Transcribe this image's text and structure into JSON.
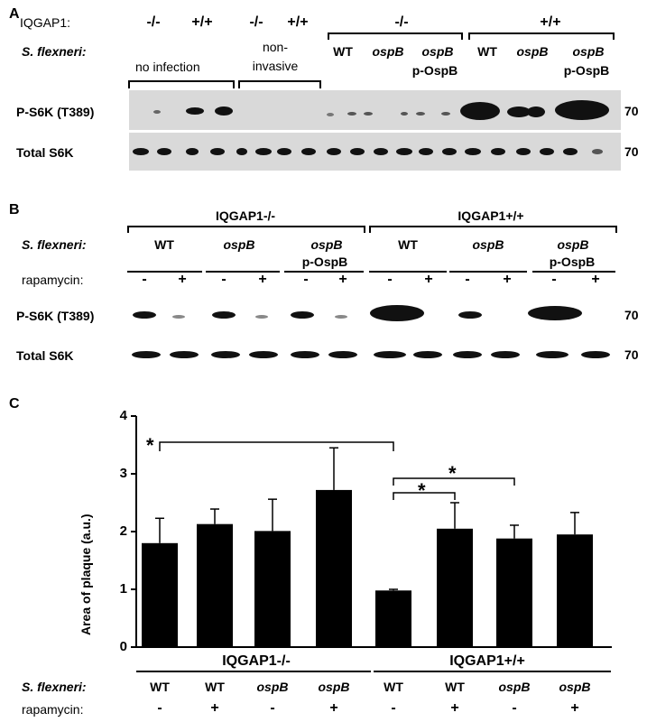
{
  "panel_a": {
    "label": "A",
    "iqgap_label": "IQGAP1:",
    "genotypes": [
      "-/-",
      "+/+",
      "-/-",
      "+/+",
      "-/-",
      "+/+"
    ],
    "strain_label": "S. flexneri:",
    "strain_colon_note": "",
    "groups": [
      "no infection",
      "non-",
      "invasive"
    ],
    "strains": [
      "WT",
      "ospB",
      "ospB",
      "p-OspB",
      "WT",
      "ospB",
      "ospB",
      "p-OspB"
    ],
    "rows": [
      "P-S6K (T389)",
      "Total S6K"
    ],
    "mw": [
      "70",
      "70"
    ]
  },
  "panel_b": {
    "label": "B",
    "genotype_groups": [
      "IQGAP1-/-",
      "IQGAP1+/+"
    ],
    "strain_label": "S. flexneri:",
    "strains": [
      "WT",
      "ospB",
      "ospB",
      "p-OspB",
      "WT",
      "ospB",
      "ospB",
      "p-OspB"
    ],
    "rapamycin_label": "rapamycin:",
    "rapamycin": [
      "-",
      "+",
      "-",
      "+",
      "-",
      "+",
      "-",
      "+",
      "-",
      "+",
      "-",
      "+"
    ],
    "rows": [
      "P-S6K (T389)",
      "Total S6K"
    ],
    "mw": [
      "70",
      "70"
    ]
  },
  "panel_c": {
    "label": "C",
    "genotype_groups": [
      "IQGAP1-/-",
      "IQGAP1+/+"
    ],
    "strain_label": "S. flexneri:",
    "strains": [
      "WT",
      "WT",
      "ospB",
      "ospB",
      "WT",
      "WT",
      "ospB",
      "ospB"
    ],
    "rapamycin_label": "rapamycin:",
    "rapamycin": [
      "-",
      "+",
      "-",
      "+",
      "-",
      "+",
      "-",
      "+"
    ],
    "significance": [
      "*",
      "*",
      "*"
    ]
  },
  "chart_data": {
    "type": "bar",
    "ylabel": "Area of plaque (a.u.)",
    "ylim": [
      0,
      4
    ],
    "yticks": [
      "0",
      "1",
      "2",
      "3",
      "4"
    ],
    "values": [
      1.8,
      2.13,
      2.01,
      2.72,
      0.98,
      2.05,
      1.88,
      1.95
    ],
    "errors": [
      0.43,
      0.26,
      0.55,
      0.73,
      0.02,
      0.45,
      0.23,
      0.38
    ],
    "bar_color": "#000000"
  }
}
